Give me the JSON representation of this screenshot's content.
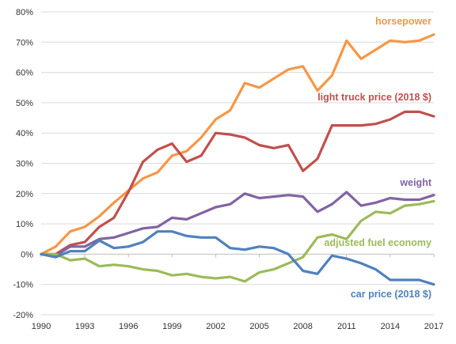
{
  "chart_data": {
    "type": "line",
    "x": [
      1990,
      1991,
      1992,
      1993,
      1994,
      1995,
      1996,
      1997,
      1998,
      1999,
      2000,
      2001,
      2002,
      2003,
      2004,
      2005,
      2006,
      2007,
      2008,
      2009,
      2010,
      2011,
      2012,
      2013,
      2014,
      2015,
      2016,
      2017
    ],
    "x_ticks": [
      1990,
      1993,
      1996,
      1999,
      2002,
      2005,
      2008,
      2011,
      2014,
      2017
    ],
    "x_tick_labels": [
      "1990",
      "1993",
      "1996",
      "1999",
      "2002",
      "2005",
      "2008",
      "2011",
      "2014",
      "2017"
    ],
    "y_ticks": [
      -20,
      -10,
      0,
      10,
      20,
      30,
      40,
      50,
      60,
      70,
      80
    ],
    "y_tick_labels": [
      "-20%",
      "-10%",
      "0%",
      "10%",
      "20%",
      "30%",
      "40%",
      "50%",
      "60%",
      "70%",
      "80%"
    ],
    "ylim": [
      -20,
      80
    ],
    "xlim": [
      1990,
      2017
    ],
    "grid": true,
    "legend": "none",
    "title": "",
    "xlabel": "",
    "ylabel": "",
    "series": [
      {
        "name": "horsepower",
        "color": "#f79646",
        "values": [
          0,
          2.5,
          7.5,
          9,
          12.5,
          17,
          21,
          25,
          27,
          32.5,
          34,
          38.5,
          44.5,
          47.5,
          56.5,
          55,
          58,
          61,
          62,
          54,
          59,
          70.5,
          64.5,
          67.5,
          70.5,
          70,
          70.5,
          72.5
        ]
      },
      {
        "name": "light truck price (2018 $)",
        "color": "#c0504d",
        "values": [
          0,
          0,
          3,
          4,
          9,
          12,
          20.5,
          30.5,
          34.5,
          36.5,
          30.5,
          32.5,
          40,
          39.5,
          38.5,
          36,
          35,
          36,
          27.5,
          31.5,
          42.5,
          42.5,
          42.5,
          43,
          44.5,
          47,
          47,
          45.5
        ]
      },
      {
        "name": "weight",
        "color": "#8064a2",
        "values": [
          0,
          -0.5,
          2.5,
          2.5,
          5,
          5.5,
          7,
          8.5,
          9,
          12,
          11.5,
          13.5,
          15.5,
          16.5,
          20,
          18.5,
          19,
          19.5,
          19,
          14,
          16.5,
          20.5,
          16,
          17,
          18.5,
          18,
          18,
          19.5
        ]
      },
      {
        "name": "adjusted fuel economy",
        "color": "#9bbb59",
        "values": [
          0,
          0,
          -2,
          -1.5,
          -4,
          -3.5,
          -4,
          -5,
          -5.5,
          -7,
          -6.5,
          -7.5,
          -8,
          -7.5,
          -9,
          -6,
          -5,
          -3,
          -1,
          5.5,
          6.5,
          5,
          11,
          14,
          13.5,
          16,
          16.5,
          17.5
        ]
      },
      {
        "name": "car price (2018 $)",
        "color": "#4f81bd",
        "values": [
          0,
          -1,
          1,
          1,
          4.5,
          2,
          2.5,
          4,
          7.5,
          7.5,
          6,
          5.5,
          5.5,
          2,
          1.5,
          2.5,
          2,
          0,
          -5.5,
          -6.5,
          -0.5,
          -1.5,
          -3,
          -5,
          -8.5,
          -8.5,
          -8.5,
          -10
        ]
      }
    ]
  }
}
